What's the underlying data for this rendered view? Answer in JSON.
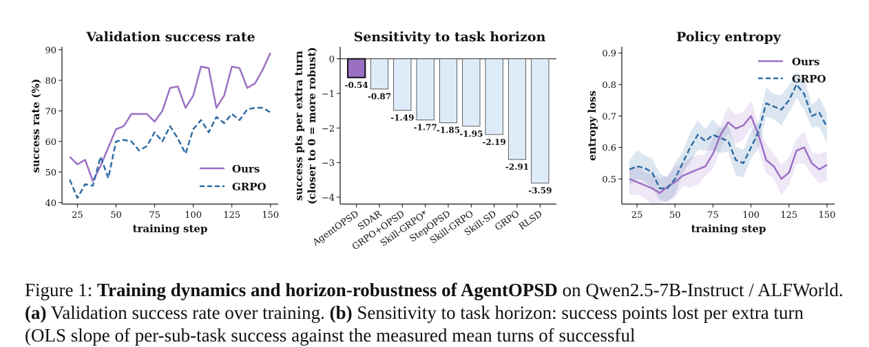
{
  "chart_data": [
    {
      "type": "line",
      "title": "Validation success rate",
      "xlabel": "training step",
      "ylabel": "success rate (%)",
      "xlim": [
        15,
        155
      ],
      "ylim": [
        39.5,
        91
      ],
      "xticks": [
        "25",
        "50",
        "75",
        "100",
        "125",
        "150"
      ],
      "yticks": [
        "40",
        "50",
        "60",
        "70",
        "80",
        "90"
      ],
      "legend_position": "lower-right",
      "series": [
        {
          "name": "Ours",
          "color": "#9b6fc4",
          "style": "solid",
          "x": [
            20,
            25,
            30,
            35,
            40,
            45,
            50,
            55,
            60,
            65,
            70,
            75,
            80,
            85,
            90,
            95,
            100,
            105,
            110,
            115,
            120,
            125,
            130,
            135,
            140,
            145,
            150
          ],
          "y": [
            55,
            52.5,
            54,
            47,
            52,
            58,
            64,
            65,
            69,
            69,
            69,
            66.5,
            70,
            77.5,
            78,
            71,
            75,
            84.5,
            84,
            71,
            75,
            84.5,
            84,
            77.5,
            79,
            83.5,
            89
          ]
        },
        {
          "name": "GRPO",
          "color": "#2e6ca4",
          "style": "dashed",
          "x": [
            20,
            25,
            30,
            35,
            40,
            45,
            50,
            55,
            60,
            65,
            70,
            75,
            80,
            85,
            90,
            95,
            100,
            105,
            110,
            115,
            120,
            125,
            130,
            135,
            140,
            145,
            150
          ],
          "y": [
            47.5,
            41.5,
            46,
            45.5,
            55,
            48,
            60,
            60.5,
            60,
            57,
            58.5,
            63,
            60,
            65,
            61,
            56,
            64,
            67,
            63,
            68,
            66,
            69,
            67,
            70.5,
            71,
            71,
            69.5
          ]
        }
      ]
    },
    {
      "type": "bar",
      "title": "Sensitivity to task horizon",
      "xlabel": "",
      "ylabel_line1": "success pts per extra turn",
      "ylabel_line2": "(closer to 0 = more robust)",
      "ylim": [
        -4.2,
        0.35
      ],
      "yticks": [
        "0",
        "−1",
        "−2",
        "−3",
        "−4"
      ],
      "categories": [
        "AgentOPSD",
        "SDAR",
        "GRPO+OPSD",
        "Skill-GRPO*",
        "StepOPSD",
        "Skill-GRPO",
        "Skill-SD",
        "GRPO",
        "RLSD"
      ],
      "values": [
        -0.54,
        -0.87,
        -1.49,
        -1.77,
        -1.85,
        -1.95,
        -2.19,
        -2.91,
        -3.59
      ],
      "labels": [
        "-0.54",
        "-0.87",
        "-1.49",
        "-1.77",
        "-1.85",
        "-1.95",
        "-2.19",
        "-2.91",
        "-3.59"
      ],
      "highlight_color": "#9b6fc4",
      "bar_color": "#ddecf8",
      "edge_color": "#3a3a3a"
    },
    {
      "type": "line",
      "title": "Policy entropy",
      "xlabel": "training step",
      "ylabel": "entropy loss",
      "xlim": [
        15,
        155
      ],
      "ylim": [
        0.42,
        0.92
      ],
      "xticks": [
        "25",
        "50",
        "75",
        "100",
        "125",
        "150"
      ],
      "yticks": [
        "0.5",
        "0.6",
        "0.7",
        "0.8",
        "0.9"
      ],
      "legend_position": "upper-right",
      "series": [
        {
          "name": "Ours",
          "color": "#9b6fc4",
          "style": "solid",
          "x": [
            20,
            25,
            30,
            35,
            40,
            45,
            50,
            55,
            60,
            65,
            70,
            75,
            80,
            85,
            90,
            95,
            100,
            105,
            110,
            115,
            120,
            125,
            130,
            135,
            140,
            145,
            150
          ],
          "y": [
            0.5,
            0.49,
            0.48,
            0.47,
            0.455,
            0.475,
            0.49,
            0.51,
            0.52,
            0.53,
            0.54,
            0.58,
            0.64,
            0.68,
            0.66,
            0.67,
            0.7,
            0.64,
            0.56,
            0.54,
            0.5,
            0.52,
            0.59,
            0.6,
            0.55,
            0.53,
            0.545
          ]
        },
        {
          "name": "GRPO",
          "color": "#2e6ca4",
          "style": "dashed",
          "x": [
            20,
            25,
            30,
            35,
            40,
            45,
            50,
            55,
            60,
            65,
            70,
            75,
            80,
            85,
            90,
            95,
            100,
            105,
            110,
            115,
            120,
            125,
            130,
            135,
            140,
            145,
            150
          ],
          "y": [
            0.53,
            0.54,
            0.535,
            0.52,
            0.47,
            0.47,
            0.5,
            0.55,
            0.6,
            0.64,
            0.62,
            0.64,
            0.63,
            0.62,
            0.56,
            0.55,
            0.6,
            0.65,
            0.74,
            0.73,
            0.72,
            0.75,
            0.8,
            0.77,
            0.7,
            0.71,
            0.665
          ]
        }
      ]
    }
  ],
  "caption": {
    "prefix": "Figure 1: ",
    "bold_title": "Training dynamics and horizon-robustness of AgentOPSD",
    "after_title": " on Qwen2.5-7B-Instruct / ALFWorld. ",
    "a_label": "(a)",
    "a_text": " Validation success rate over training. ",
    "b_label": "(b)",
    "b_text": " Sensitivity to task horizon: success points lost per extra turn (OLS slope of per-sub-task success against the measured mean turns of successful"
  }
}
